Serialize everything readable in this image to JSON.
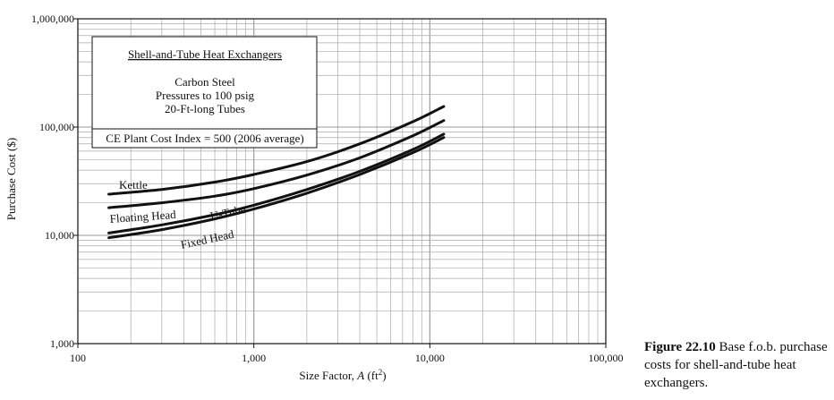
{
  "chart_data": {
    "type": "line",
    "xscale": "log",
    "yscale": "log",
    "xlim": [
      100,
      100000
    ],
    "ylim": [
      1000,
      1000000
    ],
    "xlabel_prefix": "Size Factor, ",
    "xlabel_var": "A",
    "xlabel_unit": " (ft",
    "xlabel_exp": "2",
    "xlabel_close": ")",
    "ylabel": "Purchase Cost ($)",
    "x_ticks": [
      {
        "value": 100,
        "label": "100"
      },
      {
        "value": 1000,
        "label": "1,000"
      },
      {
        "value": 10000,
        "label": "10,000"
      },
      {
        "value": 100000,
        "label": "100,000"
      }
    ],
    "y_ticks": [
      {
        "value": 1000,
        "label": "1,000"
      },
      {
        "value": 10000,
        "label": "10,000"
      },
      {
        "value": 100000,
        "label": "100,000"
      },
      {
        "value": 1000000,
        "label": "1,000,000"
      }
    ],
    "grid": true,
    "series": [
      {
        "name": "Kettle",
        "x": [
          150,
          300,
          600,
          1000,
          2000,
          4000,
          8000,
          12000
        ],
        "y": [
          24000,
          26500,
          31000,
          36500,
          48000,
          70000,
          112000,
          155000
        ]
      },
      {
        "name": "Floating Head",
        "x": [
          150,
          300,
          600,
          1000,
          2000,
          4000,
          8000,
          12000
        ],
        "y": [
          18000,
          20000,
          23000,
          27000,
          36000,
          52000,
          83000,
          115000
        ]
      },
      {
        "name": "U-Tube",
        "x": [
          150,
          300,
          600,
          1000,
          2000,
          4000,
          8000,
          12000
        ],
        "y": [
          10500,
          12500,
          15500,
          19000,
          26500,
          39000,
          62000,
          86000
        ]
      },
      {
        "name": "Fixed Head",
        "x": [
          150,
          300,
          600,
          1000,
          2000,
          4000,
          8000,
          12000
        ],
        "y": [
          9500,
          11300,
          14200,
          17500,
          24500,
          36500,
          58000,
          80000
        ]
      }
    ],
    "legend_box": {
      "title": "Shell-and-Tube Heat Exchangers",
      "lines": [
        "Carbon Steel",
        "Pressures to 100 psig",
        "20-Ft-long Tubes"
      ],
      "index_note": "CE Plant Cost Index = 500 (2006 average)"
    }
  },
  "caption": {
    "label": "Figure 22.10",
    "text": " Base f.o.b. purchase costs for shell-and-tube heat exchangers."
  }
}
